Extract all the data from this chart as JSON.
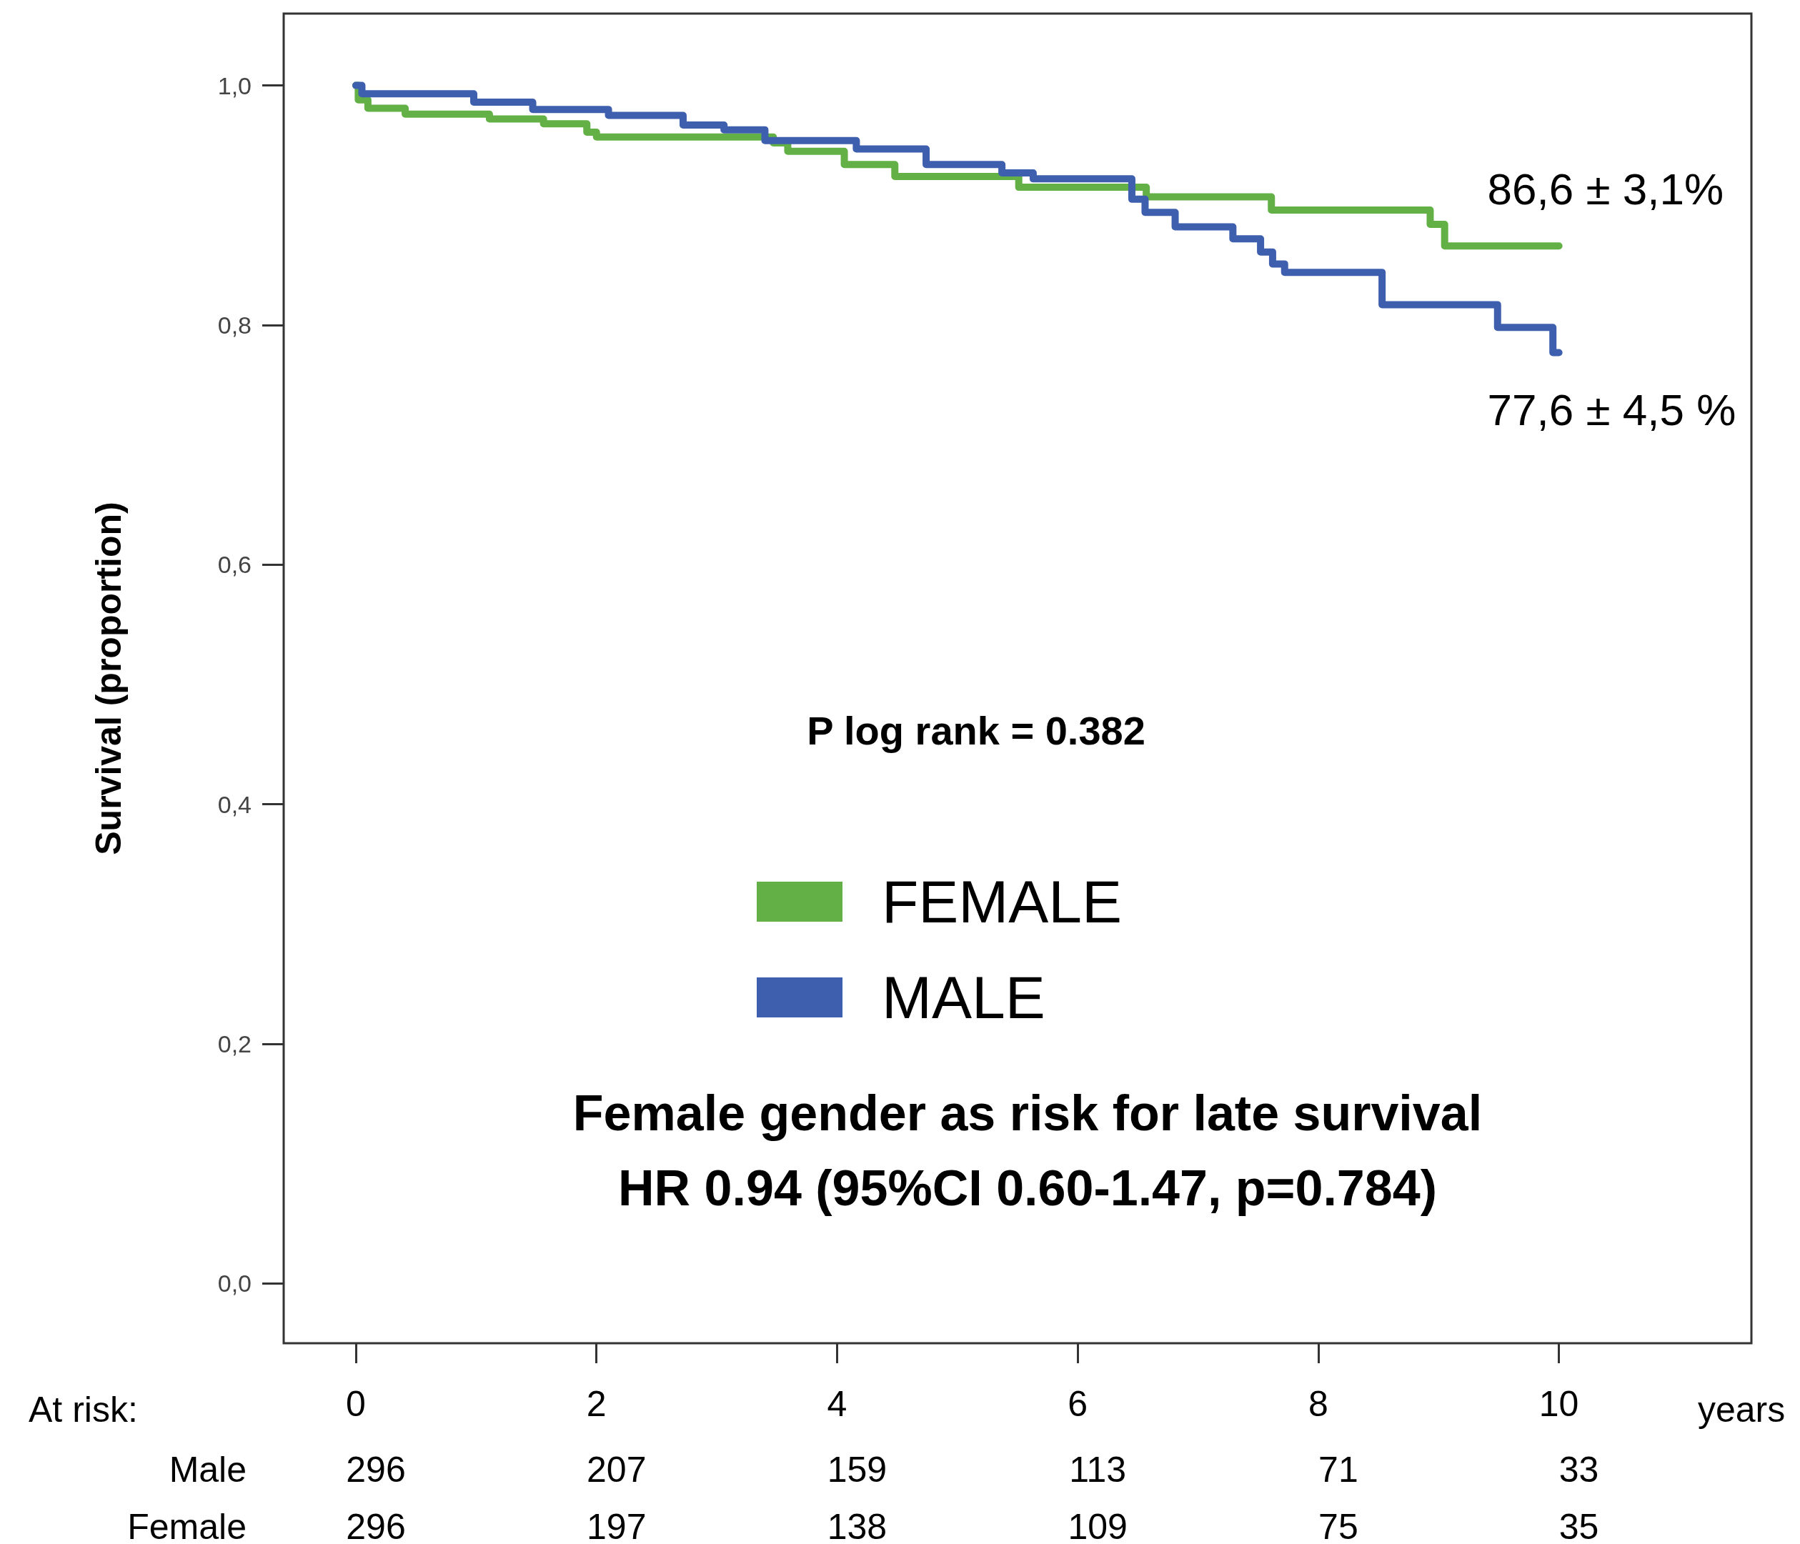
{
  "chart_data": {
    "type": "step",
    "ylabel": "Survival (proportion)",
    "xlabel": "years",
    "xlim": [
      -0.6,
      11.6
    ],
    "xticks": [
      0,
      2,
      4,
      6,
      8,
      10
    ],
    "ylim": [
      -0.05,
      1.06
    ],
    "yticks": [
      {
        "value": 0,
        "label": "0,0"
      },
      {
        "value": 0.2,
        "label": "0,2"
      },
      {
        "value": 0.4,
        "label": "0,4"
      },
      {
        "value": 0.6,
        "label": "0,6"
      },
      {
        "value": 0.8,
        "label": "0,8"
      },
      {
        "value": 1,
        "label": "1,0"
      }
    ],
    "grid": false,
    "legend": "center",
    "marker": "none",
    "line_style": "solid",
    "series": [
      {
        "name": "FEMALE",
        "color": "#63b146",
        "x": [
          0,
          0.02,
          0.1,
          0.41,
          1.11,
          1.56,
          1.92,
          2.0,
          3.47,
          3.59,
          4.06,
          4.48,
          5.51,
          6.57,
          7.61,
          8.93,
          9.05,
          10
        ],
        "values": [
          1.0,
          0.988,
          0.981,
          0.976,
          0.972,
          0.968,
          0.961,
          0.957,
          0.952,
          0.945,
          0.934,
          0.924,
          0.915,
          0.907,
          0.896,
          0.884,
          0.866,
          0.866
        ]
      },
      {
        "name": "MALE",
        "color": "#3d5fad",
        "x": [
          0,
          0.05,
          0.98,
          1.47,
          2.1,
          2.72,
          3.06,
          3.4,
          4.16,
          4.74,
          5.37,
          5.63,
          6.45,
          6.56,
          6.81,
          7.29,
          7.52,
          7.62,
          7.72,
          8.53,
          9.49,
          9.95,
          10
        ],
        "values": [
          1.0,
          0.993,
          0.986,
          0.98,
          0.975,
          0.967,
          0.963,
          0.954,
          0.947,
          0.934,
          0.927,
          0.922,
          0.905,
          0.894,
          0.882,
          0.872,
          0.861,
          0.851,
          0.844,
          0.817,
          0.798,
          0.777,
          0.777
        ]
      }
    ],
    "annotations": [
      "P log rank = 0.382",
      "Female gender as risk for late survival\nHR 0.94 (95%CI 0.60-1.47, p=0.784)",
      {
        "text": "86,6 ± 3,1%",
        "x": 10,
        "y": 0.866
      },
      {
        "text": "77,6 ± 4,5 %",
        "x": 10,
        "y": 0.777
      },
      "At risk:",
      "Male",
      "296",
      "207",
      "159",
      "113",
      "71",
      "33",
      "Female",
      "296",
      "197",
      "138",
      "109",
      "75",
      "35"
    ]
  }
}
